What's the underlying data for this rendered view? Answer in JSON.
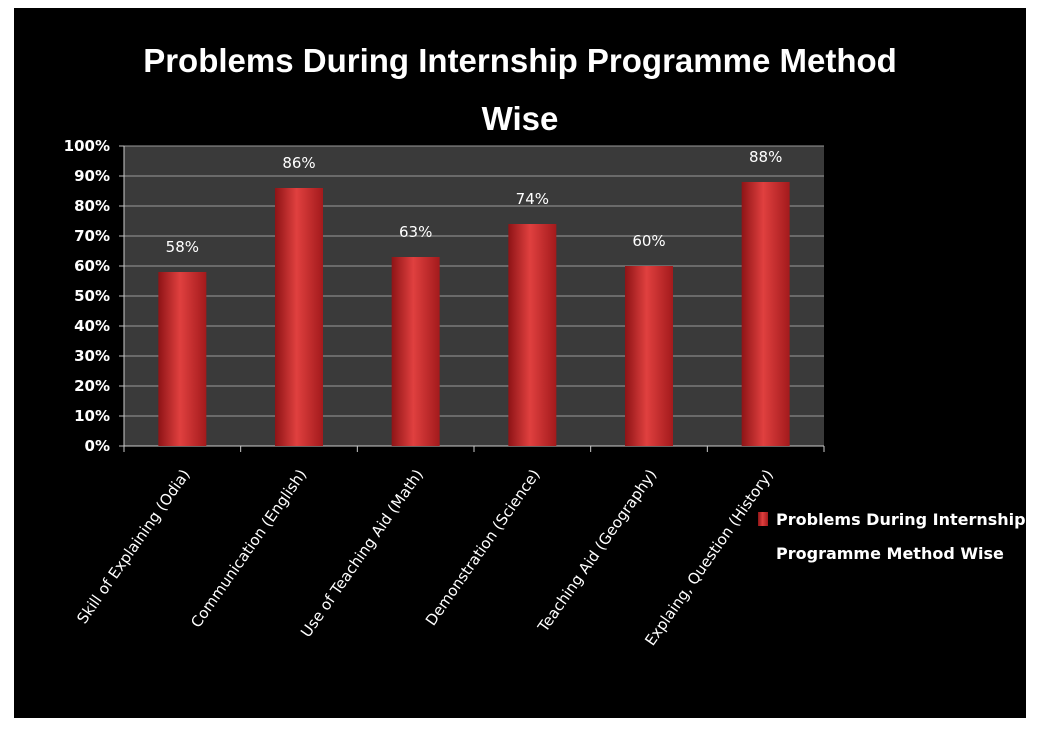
{
  "chart_data": {
    "type": "bar",
    "title_lines": [
      "Problems During Internship Programme Method",
      "Wise"
    ],
    "categories": [
      "Skill of Explaining (Odia)",
      "Communication (English)",
      "Use of Teaching Aid (Math)",
      "Demonstration (Science)",
      "Teaching Aid (Geography)",
      "Explaing, Question (History)"
    ],
    "series": [
      {
        "name": "Problems During Internship Programme Method Wise",
        "values": [
          58,
          86,
          63,
          74,
          60,
          88
        ],
        "color": "#c0282a"
      }
    ],
    "data_labels": [
      "58%",
      "86%",
      "63%",
      "74%",
      "60%",
      "88%"
    ],
    "y_ticks": [
      "0%",
      "10%",
      "20%",
      "30%",
      "40%",
      "50%",
      "60%",
      "70%",
      "80%",
      "90%",
      "100%"
    ],
    "ylim": [
      0,
      100
    ],
    "grid": true,
    "legend_position": "right",
    "legend_lines": [
      "Problems During Internship",
      "Programme Method Wise"
    ],
    "plot_background": "#3a3a3a",
    "background": "#000000"
  }
}
